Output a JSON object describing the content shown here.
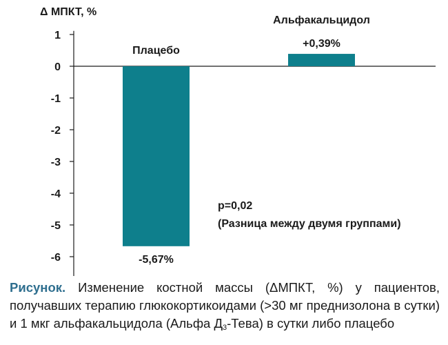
{
  "chart_data": {
    "type": "bar",
    "ylabel": "Δ МПКТ, %",
    "ylim": [
      -6.5,
      1.2
    ],
    "yticks": [
      1,
      0,
      -1,
      -2,
      -3,
      -4,
      -5,
      -6
    ],
    "categories": [
      "Плацебо",
      "Альфакальцидол"
    ],
    "values": [
      -5.67,
      0.39
    ],
    "value_labels": [
      "-5,67%",
      "+0,39%"
    ],
    "bar_color": "#0e7f8c",
    "annotation": {
      "line1": "p=0,02",
      "line2": "(Разница между двумя группами)"
    },
    "grid": false
  },
  "caption": {
    "label": "Рисунок.",
    "text_before_sub": "Изменение костной массы (ΔМПКТ, %) у пациентов, получавших терапию глюкокортикоидами (>30 мг преднизолона в сутки) и 1 мкг альфакальцидола (Альфа Д",
    "sub": "3",
    "text_after_sub": "-Тева) в сутки либо плацебо"
  }
}
